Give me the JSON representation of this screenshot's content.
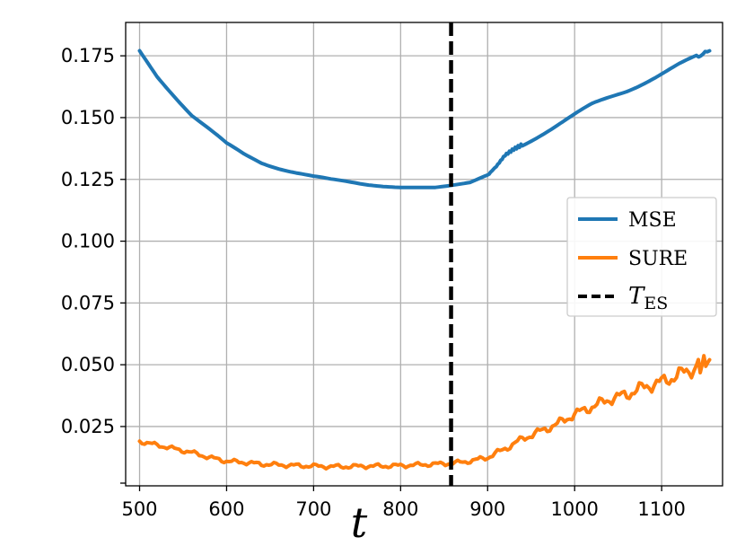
{
  "chart_data": {
    "type": "line",
    "xlabel": "t",
    "ylabel": "",
    "title": "",
    "xlim": [
      484,
      1170
    ],
    "ylim": [
      0.001,
      0.1885
    ],
    "grid": true,
    "legend_position": "center-right",
    "x_ticks": [
      {
        "value": 500,
        "label": "500"
      },
      {
        "value": 600,
        "label": "600"
      },
      {
        "value": 700,
        "label": "700"
      },
      {
        "value": 800,
        "label": "800"
      },
      {
        "value": 900,
        "label": "900"
      },
      {
        "value": 1000,
        "label": "1000"
      },
      {
        "value": 1100,
        "label": "1100"
      }
    ],
    "y_ticks": [
      {
        "value": 0.025,
        "label": "0.025"
      },
      {
        "value": 0.05,
        "label": "0.050"
      },
      {
        "value": 0.075,
        "label": "0.075"
      },
      {
        "value": 0.1,
        "label": "0.100"
      },
      {
        "value": 0.125,
        "label": "0.125"
      },
      {
        "value": 0.15,
        "label": "0.150"
      },
      {
        "value": 0.175,
        "label": "0.175"
      }
    ],
    "series": [
      {
        "name": "MSE",
        "color": "#1f77b4",
        "x": [
          500,
          520,
          540,
          560,
          580,
          600,
          620,
          640,
          660,
          680,
          700,
          720,
          740,
          760,
          780,
          800,
          820,
          840,
          860,
          880,
          900,
          910,
          920,
          930,
          940,
          960,
          980,
          1000,
          1020,
          1040,
          1060,
          1080,
          1100,
          1120,
          1140,
          1155
        ],
        "y": [
          0.177,
          0.167,
          0.159,
          0.151,
          0.145,
          0.139,
          0.135,
          0.132,
          0.13,
          0.128,
          0.126,
          0.1245,
          0.1237,
          0.123,
          0.1225,
          0.122,
          0.1218,
          0.1217,
          0.1225,
          0.1235,
          0.1265,
          0.13,
          0.1345,
          0.137,
          0.139,
          0.143,
          0.147,
          0.151,
          0.155,
          0.158,
          0.161,
          0.1645,
          0.168,
          0.1715,
          0.1745,
          0.177
        ]
      },
      {
        "name": "SURE",
        "color": "#ff7f0e",
        "x": [
          500,
          520,
          540,
          560,
          580,
          600,
          620,
          640,
          660,
          680,
          700,
          720,
          740,
          760,
          780,
          800,
          820,
          840,
          860,
          880,
          900,
          920,
          940,
          960,
          980,
          1000,
          1020,
          1040,
          1060,
          1080,
          1100,
          1120,
          1140,
          1155
        ],
        "y": [
          0.019,
          0.0175,
          0.016,
          0.0145,
          0.0125,
          0.011,
          0.0105,
          0.0098,
          0.0095,
          0.0092,
          0.009,
          0.0088,
          0.0088,
          0.009,
          0.009,
          0.0092,
          0.0095,
          0.0098,
          0.0102,
          0.011,
          0.0125,
          0.016,
          0.02,
          0.023,
          0.026,
          0.03,
          0.033,
          0.036,
          0.038,
          0.041,
          0.043,
          0.046,
          0.049,
          0.052
        ]
      }
    ],
    "vline": {
      "x": 858,
      "color": "#000000",
      "style": "dashed"
    },
    "legend": [
      {
        "label": "MSE",
        "type": "line",
        "color": "#1f77b4"
      },
      {
        "label": "SURE",
        "type": "line",
        "color": "#ff7f0e"
      },
      {
        "label": "T",
        "subscript": "ES",
        "type": "dashed",
        "color": "#000000"
      }
    ]
  }
}
